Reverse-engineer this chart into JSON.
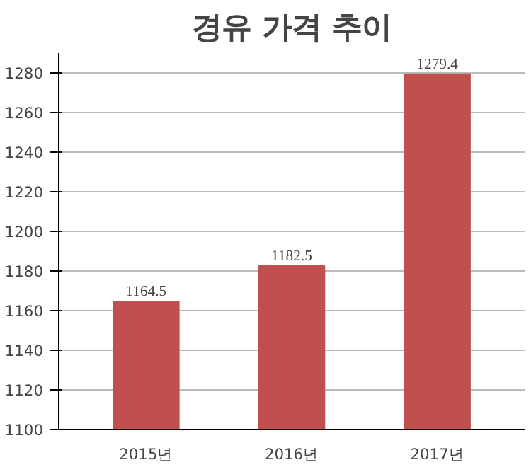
{
  "chart_data": {
    "type": "bar",
    "title": "경유 가격 추이",
    "categories": [
      "2015년",
      "2016년",
      "2017년"
    ],
    "values": [
      1164.5,
      1182.5,
      1279.4
    ],
    "color": "#c0504d",
    "ylim": [
      1100,
      1290
    ],
    "yticks": [
      1100,
      1120,
      1140,
      1160,
      1180,
      1200,
      1220,
      1240,
      1260,
      1280
    ],
    "grid": "y",
    "data_labels": true
  }
}
